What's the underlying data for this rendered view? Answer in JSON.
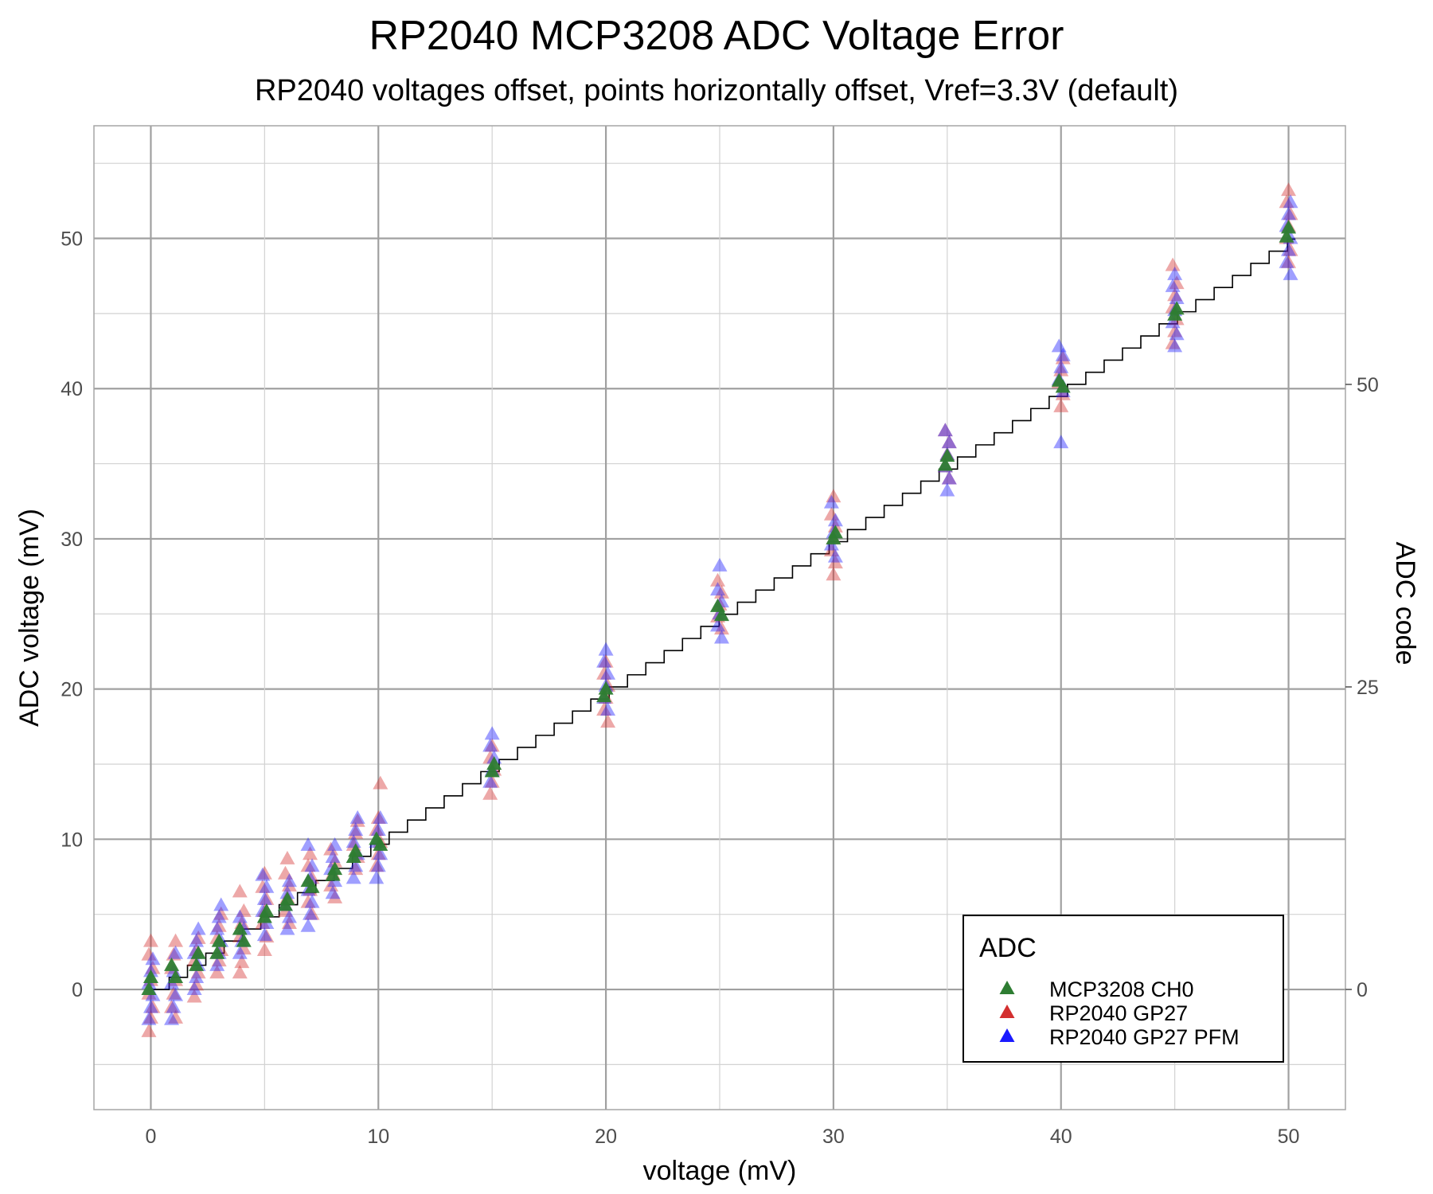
{
  "chart_data": {
    "type": "scatter",
    "title": "RP2040 MCP3208 ADC Voltage Error",
    "subtitle": "RP2040 voltages offset, points horizontally offset, Vref=3.3V (default)",
    "xlabel": "voltage (mV)",
    "ylabel": "ADC voltage (mV)",
    "y2label": "ADC code",
    "xlim": [
      -2.5,
      52.5
    ],
    "ylim": [
      -8,
      57.5
    ],
    "x_ticks": [
      "0",
      "10",
      "20",
      "30",
      "40",
      "50"
    ],
    "y_ticks": [
      "0",
      "10",
      "20",
      "30",
      "40",
      "50"
    ],
    "y2_ticks": [
      "0",
      "25",
      "50"
    ],
    "y2_ticks_mv": [
      0,
      20.142,
      40.283
    ],
    "grid": true,
    "legend": {
      "title": "ADC",
      "position": "bottom-right",
      "items": [
        "MCP3208 CH0",
        "RP2040 GP27",
        "RP2040 GP27 PFM"
      ]
    },
    "colors": {
      "MCP3208 CH0": "#2e7d32",
      "RP2040 GP27": "#d32f2f",
      "RP2040 GP27 PFM": "#1a1aff"
    },
    "step_line": {
      "name": "ideal 12-bit step",
      "lsb_mv": 0.8057,
      "x_range": [
        0,
        50.3
      ]
    },
    "series": [
      {
        "name": "MCP3208 CH0",
        "points": [
          [
            0,
            0
          ],
          [
            0,
            0.8
          ],
          [
            1,
            0.8
          ],
          [
            1,
            1.6
          ],
          [
            2,
            1.6
          ],
          [
            2,
            2.4
          ],
          [
            3,
            2.4
          ],
          [
            3,
            3.2
          ],
          [
            4,
            3.2
          ],
          [
            4,
            4.0
          ],
          [
            5,
            4.8
          ],
          [
            5,
            5.2
          ],
          [
            6,
            5.6
          ],
          [
            6,
            6.0
          ],
          [
            7,
            6.8
          ],
          [
            7,
            7.2
          ],
          [
            8,
            7.6
          ],
          [
            8,
            8.0
          ],
          [
            9,
            8.8
          ],
          [
            9,
            9.2
          ],
          [
            10,
            9.6
          ],
          [
            10,
            10.0
          ],
          [
            15,
            14.5
          ],
          [
            15,
            15.0
          ],
          [
            20,
            19.5
          ],
          [
            20,
            20.0
          ],
          [
            25,
            24.9
          ],
          [
            25,
            25.5
          ],
          [
            30,
            30.0
          ],
          [
            30,
            30.4
          ],
          [
            35,
            34.9
          ],
          [
            35,
            35.5
          ],
          [
            40,
            40.1
          ],
          [
            40,
            40.5
          ],
          [
            45,
            44.9
          ],
          [
            45,
            45.3
          ],
          [
            50,
            50.1
          ],
          [
            50,
            50.7
          ]
        ]
      },
      {
        "name": "RP2040 GP27",
        "points": [
          [
            0,
            -2.8
          ],
          [
            0,
            -1.9
          ],
          [
            0,
            -1.2
          ],
          [
            0,
            -0.3
          ],
          [
            0,
            0.6
          ],
          [
            0,
            1.4
          ],
          [
            0,
            2.3
          ],
          [
            0,
            3.2
          ],
          [
            1,
            -1.9
          ],
          [
            1,
            -1.2
          ],
          [
            1,
            -0.3
          ],
          [
            1,
            0.6
          ],
          [
            1,
            1.4
          ],
          [
            1,
            2.3
          ],
          [
            1,
            3.2
          ],
          [
            2,
            -0.5
          ],
          [
            2,
            0.3
          ],
          [
            2,
            1.1
          ],
          [
            2,
            1.9
          ],
          [
            2,
            2.6
          ],
          [
            2,
            3.4
          ],
          [
            3,
            1.1
          ],
          [
            3,
            1.9
          ],
          [
            3,
            2.6
          ],
          [
            3,
            3.4
          ],
          [
            3,
            4.2
          ],
          [
            3,
            5.0
          ],
          [
            4,
            1.1
          ],
          [
            4,
            1.8
          ],
          [
            4,
            2.7
          ],
          [
            4,
            3.5
          ],
          [
            4,
            4.4
          ],
          [
            4,
            5.2
          ],
          [
            4,
            6.5
          ],
          [
            5,
            2.6
          ],
          [
            5,
            3.5
          ],
          [
            5,
            4.4
          ],
          [
            5,
            5.2
          ],
          [
            5,
            6.0
          ],
          [
            5,
            6.8
          ],
          [
            5,
            7.7
          ],
          [
            6,
            4.4
          ],
          [
            6,
            5.2
          ],
          [
            6,
            6.1
          ],
          [
            6,
            6.9
          ],
          [
            6,
            7.7
          ],
          [
            6,
            8.7
          ],
          [
            7,
            5.0
          ],
          [
            7,
            5.8
          ],
          [
            7,
            6.6
          ],
          [
            7,
            7.4
          ],
          [
            7,
            8.2
          ],
          [
            7,
            9.0
          ],
          [
            8,
            6.1
          ],
          [
            8,
            6.9
          ],
          [
            8,
            7.7
          ],
          [
            8,
            8.5
          ],
          [
            8,
            9.3
          ],
          [
            9,
            8.0
          ],
          [
            9,
            8.8
          ],
          [
            9,
            9.6
          ],
          [
            9,
            10.4
          ],
          [
            9,
            11.2
          ],
          [
            10,
            8.2
          ],
          [
            10,
            9.0
          ],
          [
            10,
            9.8
          ],
          [
            10,
            10.6
          ],
          [
            10,
            11.4
          ],
          [
            10,
            13.7
          ],
          [
            15,
            13.0
          ],
          [
            15,
            13.8
          ],
          [
            15,
            14.6
          ],
          [
            15,
            15.4
          ],
          [
            15,
            16.2
          ],
          [
            20,
            17.8
          ],
          [
            20,
            18.6
          ],
          [
            20,
            19.4
          ],
          [
            20,
            20.2
          ],
          [
            20,
            21.0
          ],
          [
            20,
            21.8
          ],
          [
            25,
            24.0
          ],
          [
            25,
            24.8
          ],
          [
            25,
            25.6
          ],
          [
            25,
            26.4
          ],
          [
            25,
            27.2
          ],
          [
            30,
            27.6
          ],
          [
            30,
            28.4
          ],
          [
            30,
            29.2
          ],
          [
            30,
            30.0
          ],
          [
            30,
            30.8
          ],
          [
            30,
            31.6
          ],
          [
            30,
            32.8
          ],
          [
            35,
            34.0
          ],
          [
            35,
            34.8
          ],
          [
            35,
            35.6
          ],
          [
            35,
            36.4
          ],
          [
            35,
            37.2
          ],
          [
            40,
            38.8
          ],
          [
            40,
            39.6
          ],
          [
            40,
            40.4
          ],
          [
            40,
            41.2
          ],
          [
            40,
            42.0
          ],
          [
            45,
            43.0
          ],
          [
            45,
            43.8
          ],
          [
            45,
            44.6
          ],
          [
            45,
            45.4
          ],
          [
            45,
            46.2
          ],
          [
            45,
            47.0
          ],
          [
            45,
            48.2
          ],
          [
            50,
            48.4
          ],
          [
            50,
            49.2
          ],
          [
            50,
            50.0
          ],
          [
            50,
            50.8
          ],
          [
            50,
            51.6
          ],
          [
            50,
            52.4
          ],
          [
            50,
            53.2
          ]
        ]
      },
      {
        "name": "RP2040 GP27 PFM",
        "points": [
          [
            0,
            -2.0
          ],
          [
            0,
            -1.2
          ],
          [
            0,
            -0.4
          ],
          [
            0,
            0.4
          ],
          [
            0,
            1.2
          ],
          [
            0,
            2.0
          ],
          [
            1,
            -2.0
          ],
          [
            1,
            -1.2
          ],
          [
            1,
            -0.4
          ],
          [
            1,
            0.4
          ],
          [
            1,
            1.2
          ],
          [
            1,
            2.4
          ],
          [
            2,
            0.0
          ],
          [
            2,
            0.8
          ],
          [
            2,
            1.6
          ],
          [
            2,
            2.4
          ],
          [
            2,
            3.2
          ],
          [
            2,
            4.0
          ],
          [
            3,
            1.6
          ],
          [
            3,
            2.4
          ],
          [
            3,
            3.2
          ],
          [
            3,
            4.0
          ],
          [
            3,
            4.8
          ],
          [
            3,
            5.6
          ],
          [
            4,
            2.4
          ],
          [
            4,
            3.2
          ],
          [
            4,
            4.0
          ],
          [
            4,
            4.8
          ],
          [
            5,
            3.6
          ],
          [
            5,
            4.4
          ],
          [
            5,
            5.2
          ],
          [
            5,
            6.0
          ],
          [
            5,
            6.8
          ],
          [
            5,
            7.6
          ],
          [
            6,
            4.0
          ],
          [
            6,
            4.8
          ],
          [
            6,
            5.6
          ],
          [
            6,
            6.4
          ],
          [
            6,
            7.2
          ],
          [
            7,
            4.2
          ],
          [
            7,
            5.0
          ],
          [
            7,
            5.8
          ],
          [
            7,
            6.6
          ],
          [
            7,
            7.4
          ],
          [
            7,
            8.2
          ],
          [
            7,
            9.6
          ],
          [
            8,
            6.4
          ],
          [
            8,
            7.2
          ],
          [
            8,
            8.0
          ],
          [
            8,
            8.8
          ],
          [
            8,
            9.6
          ],
          [
            9,
            7.4
          ],
          [
            9,
            8.2
          ],
          [
            9,
            9.0
          ],
          [
            9,
            9.8
          ],
          [
            9,
            10.6
          ],
          [
            9,
            11.4
          ],
          [
            10,
            7.4
          ],
          [
            10,
            8.2
          ],
          [
            10,
            9.0
          ],
          [
            10,
            9.8
          ],
          [
            10,
            10.6
          ],
          [
            10,
            11.4
          ],
          [
            15,
            13.8
          ],
          [
            15,
            14.6
          ],
          [
            15,
            15.4
          ],
          [
            15,
            16.2
          ],
          [
            15,
            17.0
          ],
          [
            20,
            18.6
          ],
          [
            20,
            19.4
          ],
          [
            20,
            20.2
          ],
          [
            20,
            21.0
          ],
          [
            20,
            21.8
          ],
          [
            20,
            22.6
          ],
          [
            25,
            23.4
          ],
          [
            25,
            24.2
          ],
          [
            25,
            25.0
          ],
          [
            25,
            25.8
          ],
          [
            25,
            26.6
          ],
          [
            25,
            28.2
          ],
          [
            30,
            28.8
          ],
          [
            30,
            29.6
          ],
          [
            30,
            30.4
          ],
          [
            30,
            31.2
          ],
          [
            30,
            32.4
          ],
          [
            35,
            33.2
          ],
          [
            35,
            34.0
          ],
          [
            35,
            34.8
          ],
          [
            35,
            35.6
          ],
          [
            35,
            36.4
          ],
          [
            35,
            37.2
          ],
          [
            40,
            36.4
          ],
          [
            40,
            39.8
          ],
          [
            40,
            40.6
          ],
          [
            40,
            41.4
          ],
          [
            40,
            42.2
          ],
          [
            40,
            42.8
          ],
          [
            45,
            42.8
          ],
          [
            45,
            43.6
          ],
          [
            45,
            44.4
          ],
          [
            45,
            45.2
          ],
          [
            45,
            46.0
          ],
          [
            45,
            46.8
          ],
          [
            45,
            47.6
          ],
          [
            50,
            47.6
          ],
          [
            50,
            48.4
          ],
          [
            50,
            49.2
          ],
          [
            50,
            50.0
          ],
          [
            50,
            50.8
          ],
          [
            50,
            51.6
          ],
          [
            50,
            52.4
          ]
        ]
      }
    ]
  }
}
